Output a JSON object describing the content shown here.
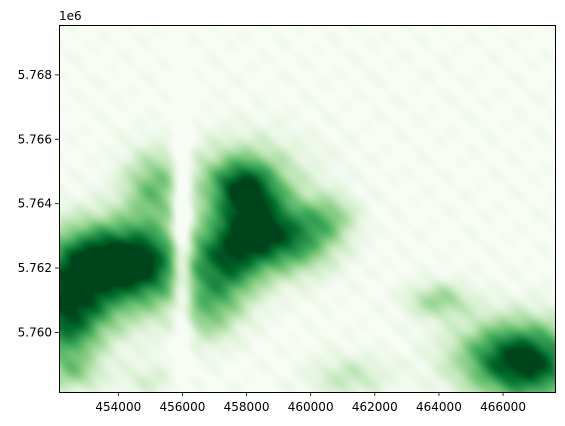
{
  "chart_data": {
    "type": "heatmap",
    "colormap": "Greens",
    "colormap_low": "#f7fcf5",
    "colormap_high": "#00441b",
    "title": "",
    "xlabel": "",
    "ylabel": "",
    "xlim": [
      452150,
      467620
    ],
    "ylim": [
      5758150,
      5769550
    ],
    "y_offset_text": "1e6",
    "xticks": [
      {
        "value": 454000,
        "label": "454000"
      },
      {
        "value": 456000,
        "label": "456000"
      },
      {
        "value": 458000,
        "label": "458000"
      },
      {
        "value": 460000,
        "label": "460000"
      },
      {
        "value": 462000,
        "label": "462000"
      },
      {
        "value": 464000,
        "label": "464000"
      },
      {
        "value": 466000,
        "label": "466000"
      }
    ],
    "yticks": [
      {
        "value": 5760000,
        "label": "5.760"
      },
      {
        "value": 5762000,
        "label": "5.762"
      },
      {
        "value": 5764000,
        "label": "5.764"
      },
      {
        "value": 5766000,
        "label": "5.766"
      },
      {
        "value": 5768000,
        "label": "5.768"
      }
    ],
    "intensity_features": [
      {
        "name": "west-ridge",
        "x": 452700,
        "y": 5761400,
        "sx": 1300,
        "sy": 1100,
        "amp": 0.95
      },
      {
        "name": "west-ridge-north",
        "x": 453800,
        "y": 5762400,
        "sx": 1100,
        "sy": 800,
        "amp": 0.8
      },
      {
        "name": "west-edge-low",
        "x": 452400,
        "y": 5760000,
        "sx": 700,
        "sy": 900,
        "amp": 0.55
      },
      {
        "name": "west-upper-slope",
        "x": 455100,
        "y": 5764500,
        "sx": 700,
        "sy": 800,
        "amp": 0.55
      },
      {
        "name": "west-mid",
        "x": 455000,
        "y": 5762000,
        "sx": 700,
        "sy": 900,
        "amp": 0.6
      },
      {
        "name": "central-ridge-a",
        "x": 457300,
        "y": 5762200,
        "sx": 900,
        "sy": 900,
        "amp": 0.9
      },
      {
        "name": "central-ridge-b",
        "x": 458300,
        "y": 5763500,
        "sx": 900,
        "sy": 900,
        "amp": 0.85
      },
      {
        "name": "central-ridge-c",
        "x": 457800,
        "y": 5764600,
        "sx": 700,
        "sy": 600,
        "amp": 0.6
      },
      {
        "name": "central-ridge-d",
        "x": 459600,
        "y": 5762800,
        "sx": 900,
        "sy": 700,
        "amp": 0.65
      },
      {
        "name": "central-ridge-e",
        "x": 460600,
        "y": 5763600,
        "sx": 600,
        "sy": 500,
        "amp": 0.4
      },
      {
        "name": "central-south",
        "x": 456800,
        "y": 5760600,
        "sx": 700,
        "sy": 700,
        "amp": 0.45
      },
      {
        "name": "central-plateau",
        "x": 458000,
        "y": 5765000,
        "sx": 1500,
        "sy": 900,
        "amp": 0.3
      },
      {
        "name": "hill-464",
        "x": 464000,
        "y": 5761000,
        "sx": 700,
        "sy": 400,
        "amp": 0.45
      },
      {
        "name": "southeast-hill",
        "x": 466900,
        "y": 5759000,
        "sx": 1200,
        "sy": 900,
        "amp": 0.95
      },
      {
        "name": "southeast-spread",
        "x": 465800,
        "y": 5759300,
        "sx": 1200,
        "sy": 800,
        "amp": 0.45
      },
      {
        "name": "south-461",
        "x": 461200,
        "y": 5758600,
        "sx": 900,
        "sy": 500,
        "amp": 0.3
      },
      {
        "name": "south-455",
        "x": 455000,
        "y": 5758500,
        "sx": 700,
        "sy": 400,
        "amp": 0.2
      },
      {
        "name": "south-west-corner",
        "x": 452600,
        "y": 5758700,
        "sx": 600,
        "sy": 400,
        "amp": 0.3
      }
    ],
    "intensity_cuts": [
      {
        "name": "valley",
        "x": 456000,
        "y": 5763000,
        "sx": 220,
        "sy": 2600,
        "amp": 0.55
      }
    ]
  }
}
